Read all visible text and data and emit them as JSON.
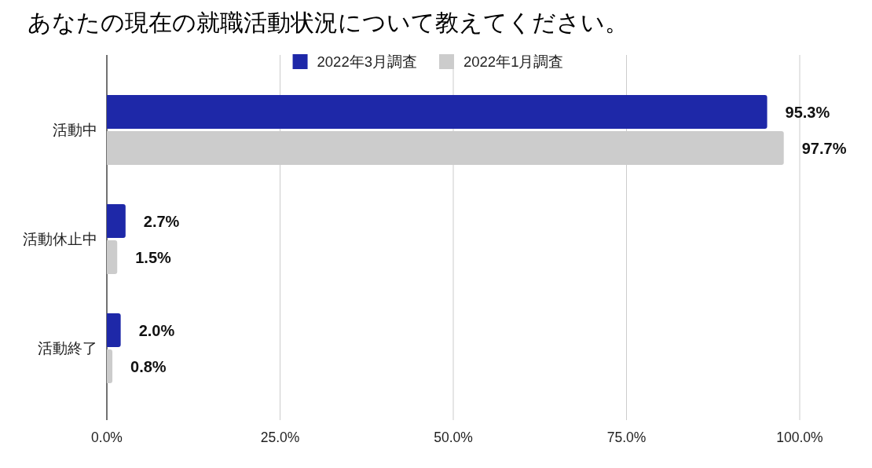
{
  "chart_data": {
    "type": "bar",
    "orientation": "horizontal",
    "title": "あなたの現在の就職活動状況について教えてください。",
    "categories": [
      "活動中",
      "活動休止中",
      "活動終了"
    ],
    "series": [
      {
        "name": "2022年3月調査",
        "color": "#1e28a8",
        "values": [
          95.3,
          2.7,
          2.0
        ],
        "value_labels": [
          "95.3%",
          "2.7%",
          "2.0%"
        ]
      },
      {
        "name": "2022年1月調査",
        "color": "#cccccc",
        "values": [
          97.7,
          1.5,
          0.8
        ],
        "value_labels": [
          "97.7%",
          "1.5%",
          "0.8%"
        ]
      }
    ],
    "xlim": [
      0,
      100
    ],
    "xticks": [
      {
        "value": 0,
        "label": "0.0%"
      },
      {
        "value": 25,
        "label": "25.0%"
      },
      {
        "value": 50,
        "label": "50.0%"
      },
      {
        "value": 75,
        "label": "75.0%"
      },
      {
        "value": 100,
        "label": "100.0%"
      }
    ],
    "grid": "x",
    "legend": "top"
  }
}
